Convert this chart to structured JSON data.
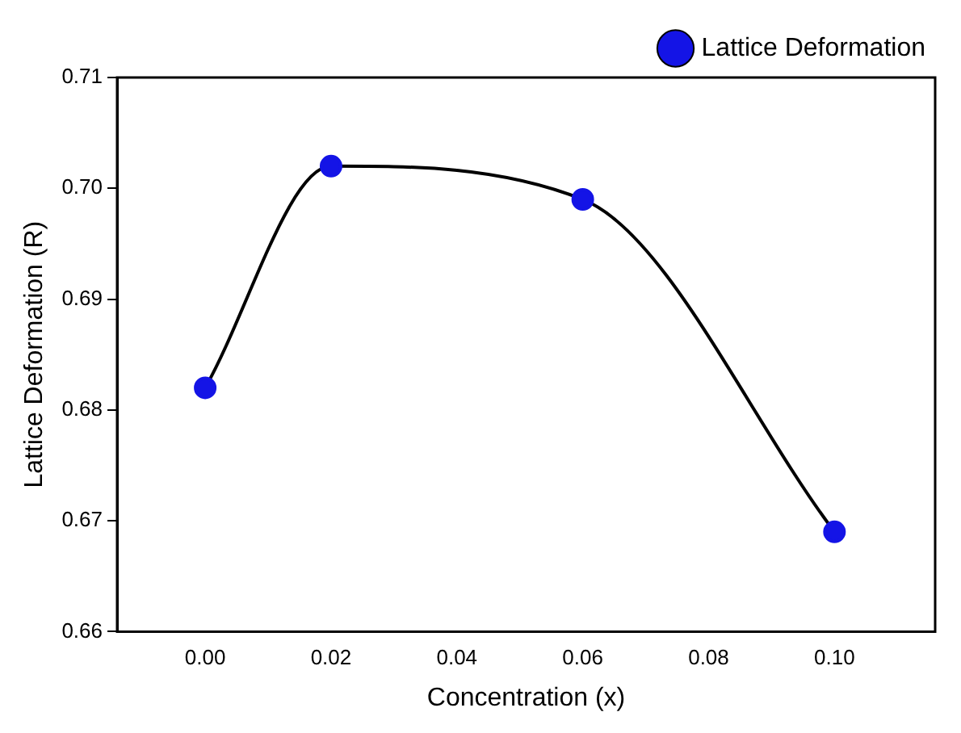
{
  "chart_data": {
    "type": "line",
    "xlabel": "Concentration (x)",
    "ylabel": "Lattice Deformation (R)",
    "x": [
      0,
      0.02,
      0.06,
      0.1
    ],
    "series": [
      {
        "name": "Lattice Deformation",
        "color": "#000000",
        "colors": [
          "#1414e6",
          "#1414e6",
          "#1414e6",
          "#1414e6"
        ],
        "values": [
          0.682,
          0.702,
          0.699,
          0.669
        ]
      }
    ],
    "xlim": [
      -0.014,
      0.116
    ],
    "xticks": [
      {
        "value": 0,
        "label": "0.00"
      },
      {
        "value": 0.02,
        "label": "0.02"
      },
      {
        "value": 0.04,
        "label": "0.04"
      },
      {
        "value": 0.06,
        "label": "0.06"
      },
      {
        "value": 0.08,
        "label": "0.08"
      },
      {
        "value": 0.1,
        "label": "0.10"
      }
    ],
    "ylim": [
      0.66,
      0.71
    ],
    "yticks": [
      {
        "value": 0.66,
        "label": "0.66"
      },
      {
        "value": 0.67,
        "label": "0.67"
      },
      {
        "value": 0.68,
        "label": "0.68"
      },
      {
        "value": 0.69,
        "label": "0.69"
      },
      {
        "value": 0.7,
        "label": "0.70"
      },
      {
        "value": 0.71,
        "label": "0.71"
      }
    ],
    "grid": false,
    "legend": "top right",
    "marker": "circle",
    "line_style": "solid"
  }
}
